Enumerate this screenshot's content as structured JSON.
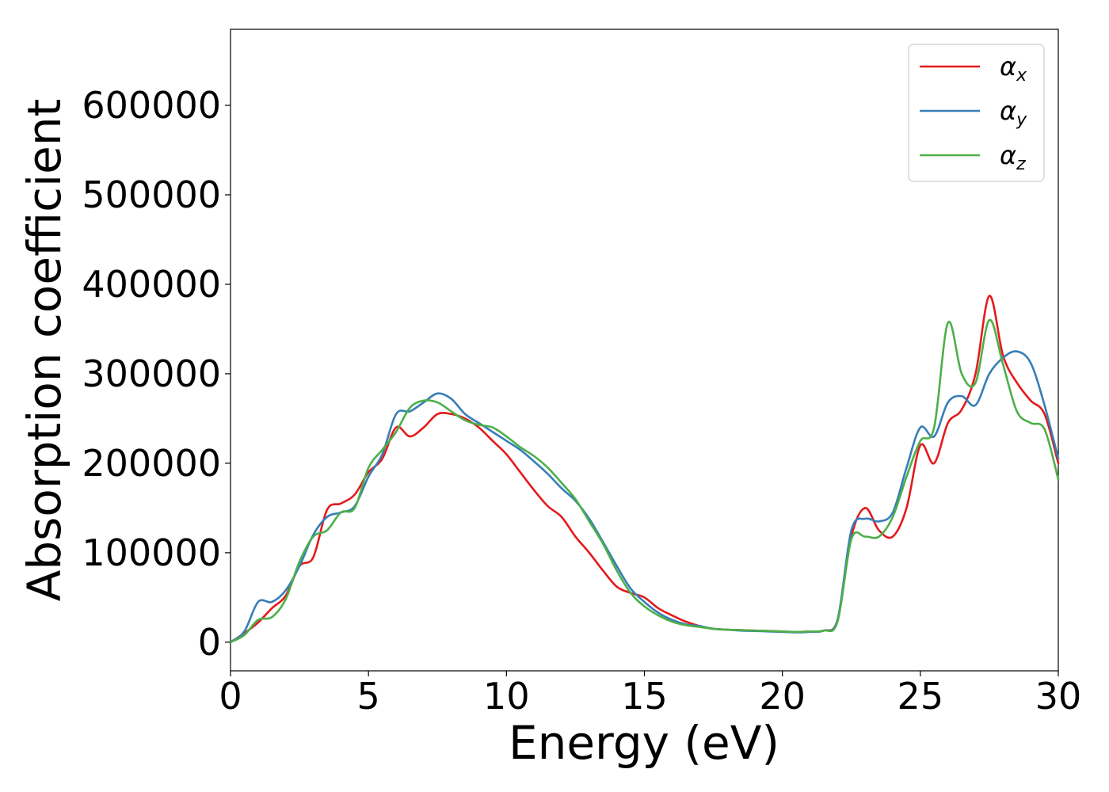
{
  "chart_data": {
    "type": "line",
    "xlabel": "Energy (eV)",
    "ylabel": "Absorption coefficient",
    "xlim": [
      0,
      30
    ],
    "ylim": [
      -32000,
      685000
    ],
    "xticks": [
      0,
      5,
      10,
      15,
      20,
      25,
      30
    ],
    "yticks": [
      0,
      100000,
      200000,
      300000,
      400000,
      500000,
      600000
    ],
    "grid": false,
    "legend_position": "top-right",
    "x": [
      0,
      0.5,
      1,
      1.5,
      2,
      2.5,
      3,
      3.5,
      4,
      4.5,
      5,
      5.5,
      6,
      6.5,
      7,
      7.5,
      8,
      8.5,
      9,
      9.5,
      10,
      10.5,
      11,
      11.5,
      12,
      12.5,
      13,
      13.5,
      14,
      14.5,
      15,
      15.5,
      16,
      16.5,
      17,
      17.5,
      18,
      18.5,
      19,
      19.5,
      20,
      20.5,
      21,
      21.5,
      22,
      22.5,
      23,
      23.5,
      24,
      24.5,
      25,
      25.5,
      26,
      26.5,
      27,
      27.5,
      28,
      28.5,
      29,
      29.5,
      30
    ],
    "series": [
      {
        "name": "α",
        "subscript": "x",
        "color": "#e41a1c",
        "values": [
          0,
          10000,
          22000,
          38000,
          52000,
          85000,
          95000,
          148000,
          155000,
          165000,
          190000,
          205000,
          240000,
          230000,
          240000,
          255000,
          255000,
          250000,
          240000,
          225000,
          210000,
          190000,
          170000,
          152000,
          140000,
          118000,
          100000,
          80000,
          62000,
          55000,
          50000,
          38000,
          30000,
          23000,
          18000,
          15000,
          14000,
          13500,
          13000,
          12500,
          12000,
          11500,
          12000,
          13000,
          25000,
          118000,
          150000,
          125000,
          118000,
          150000,
          220000,
          200000,
          245000,
          260000,
          300000,
          387000,
          320000,
          290000,
          270000,
          255000,
          200000
        ]
      },
      {
        "name": "α",
        "subscript": "y",
        "color": "#377eb8",
        "values": [
          0,
          12000,
          45000,
          45000,
          58000,
          85000,
          120000,
          140000,
          145000,
          152000,
          185000,
          210000,
          255000,
          258000,
          268000,
          278000,
          272000,
          255000,
          245000,
          235000,
          225000,
          215000,
          202000,
          188000,
          172000,
          158000,
          138000,
          112000,
          85000,
          60000,
          45000,
          33000,
          25000,
          20000,
          18000,
          15000,
          14000,
          13000,
          12500,
          12000,
          11500,
          11000,
          11500,
          13000,
          25000,
          125000,
          138000,
          135000,
          145000,
          195000,
          240000,
          230000,
          268000,
          275000,
          265000,
          300000,
          318000,
          325000,
          312000,
          265000,
          205000
        ]
      },
      {
        "name": "α",
        "subscript": "z",
        "color": "#4daf4a",
        "values": [
          0,
          8000,
          25000,
          28000,
          48000,
          90000,
          118000,
          125000,
          145000,
          150000,
          195000,
          215000,
          235000,
          262000,
          270000,
          268000,
          258000,
          248000,
          243000,
          240000,
          230000,
          218000,
          208000,
          195000,
          178000,
          160000,
          135000,
          110000,
          80000,
          55000,
          40000,
          30000,
          23000,
          19000,
          17000,
          15000,
          14000,
          13500,
          13000,
          12500,
          12000,
          11500,
          12000,
          13000,
          23000,
          115000,
          118000,
          118000,
          140000,
          185000,
          225000,
          240000,
          357000,
          300000,
          290000,
          360000,
          310000,
          258000,
          245000,
          238000,
          182000
        ]
      }
    ]
  }
}
